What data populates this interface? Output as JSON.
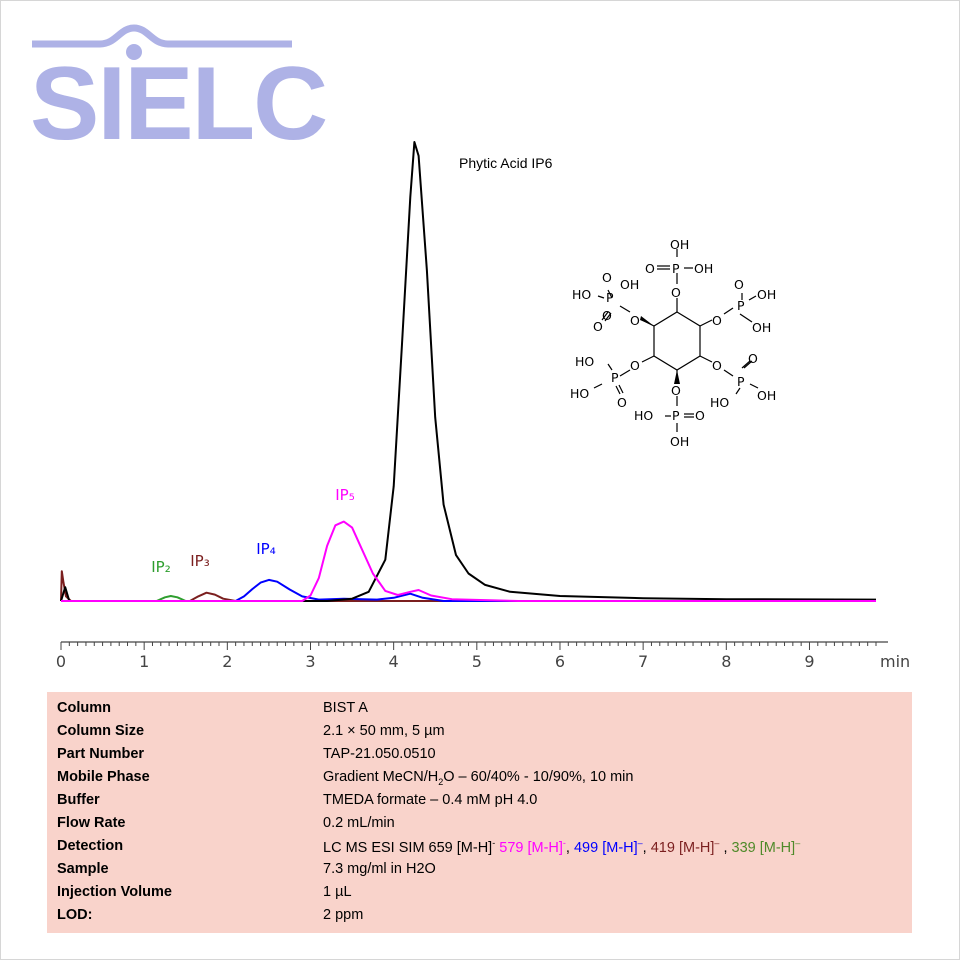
{
  "logo": {
    "text": "SIELC",
    "color": "#aeb2e6"
  },
  "chart_data": {
    "type": "line",
    "title": "Phytic Acid  IP6",
    "xlabel": "min",
    "xlim": [
      0,
      9.8
    ],
    "ylim": [
      0,
      100
    ],
    "x_ticks": [
      "0",
      "1",
      "2",
      "3",
      "4",
      "5",
      "6",
      "7",
      "8",
      "9"
    ],
    "series": [
      {
        "name": "IP6",
        "color": "#000000",
        "x": [
          0,
          0.05,
          0.1,
          0.2,
          3.2,
          3.5,
          3.7,
          3.9,
          4.0,
          4.1,
          4.2,
          4.25,
          4.3,
          4.4,
          4.5,
          4.6,
          4.75,
          4.9,
          5.1,
          5.4,
          6.0,
          7.0,
          8.0,
          9.8
        ],
        "y": [
          0,
          3,
          0,
          0,
          0,
          0.5,
          2,
          9,
          25,
          56,
          88,
          100,
          97,
          72,
          40,
          21,
          10,
          6,
          3.5,
          2,
          1.1,
          0.6,
          0.4,
          0.3
        ]
      },
      {
        "name": "IP5",
        "label": "IP₅",
        "color": "#ff00ff",
        "x": [
          0,
          2.9,
          3.0,
          3.1,
          3.2,
          3.3,
          3.4,
          3.5,
          3.6,
          3.75,
          3.9,
          4.05,
          4.2,
          4.3,
          4.45,
          4.7,
          5.5,
          9.8
        ],
        "y": [
          0,
          0,
          1.2,
          5,
          12,
          16.5,
          17.3,
          16,
          12,
          6,
          2.2,
          1.3,
          2,
          2.4,
          1.2,
          0.4,
          0,
          0
        ]
      },
      {
        "name": "IP4",
        "label": "IP₄",
        "color": "#0000ff",
        "x": [
          0,
          2.1,
          2.2,
          2.3,
          2.4,
          2.5,
          2.6,
          2.75,
          2.9,
          3.1,
          3.4,
          3.8,
          4.0,
          4.2,
          4.35,
          4.6,
          9.8
        ],
        "y": [
          0,
          0,
          1,
          2.6,
          4,
          4.6,
          4.2,
          2.5,
          1,
          0.3,
          0.5,
          0.3,
          0.7,
          1.6,
          0.7,
          0,
          0
        ]
      },
      {
        "name": "IP3",
        "label": "IP₃",
        "color": "#7b1f1f",
        "x": [
          0,
          0.01,
          0.03,
          0.06,
          0.12,
          1.55,
          1.65,
          1.75,
          1.85,
          1.95,
          2.1,
          9.8
        ],
        "y": [
          0,
          6.5,
          4,
          1,
          0,
          0,
          1,
          1.8,
          1.4,
          0.5,
          0,
          0
        ]
      },
      {
        "name": "IP2",
        "label": "IP₂",
        "color": "#2e9e2e",
        "x": [
          0,
          1.15,
          1.25,
          1.32,
          1.4,
          1.5,
          9.8
        ],
        "y": [
          0,
          0,
          0.8,
          1.1,
          0.8,
          0,
          0
        ]
      }
    ]
  },
  "structure": {
    "labels": [
      "OH",
      "O",
      "P",
      "OH",
      "HO",
      "OH",
      "O",
      "P",
      "OH",
      "P",
      "O",
      "OH",
      "HO",
      "O",
      "P",
      "OH",
      "O",
      "P",
      "O",
      "HO",
      "HO",
      "O",
      "HO",
      "P",
      "O",
      "OH",
      "O",
      "O",
      "O",
      "O",
      "O",
      "O"
    ]
  },
  "conditions": [
    {
      "label": "Column",
      "value": "BIST A"
    },
    {
      "label": "Column Size",
      "value": "2.1 × 50 mm, 5 µm"
    },
    {
      "label": "Part Number",
      "value": "TAP-21.050.0510"
    },
    {
      "label": "Mobile Phase",
      "value_a": "Gradient MeCN/H",
      "value_sub": "2",
      "value_b": "O – 60/40% - 10/90%, 10 min"
    },
    {
      "label": "Buffer",
      "value": "TMEDA formate – 0.4 mM pH 4.0"
    },
    {
      "label": "Flow Rate",
      "value": "0.2 mL/min"
    },
    {
      "label": "Detection",
      "parts": [
        "LC MS ESI SIM 659 [M-H]",
        "-",
        " ",
        "579 [M-H]",
        "-",
        ", ",
        "499 [M-H]",
        "–",
        ", ",
        "419 [M-H]",
        "–",
        " , ",
        "339 [M-H]",
        "–"
      ]
    },
    {
      "label": "Sample",
      "value": "7.3 mg/ml in H2O"
    },
    {
      "label": "Injection Volume",
      "value": "1 µL"
    },
    {
      "label": "LOD:",
      "value": "2 ppm"
    }
  ]
}
